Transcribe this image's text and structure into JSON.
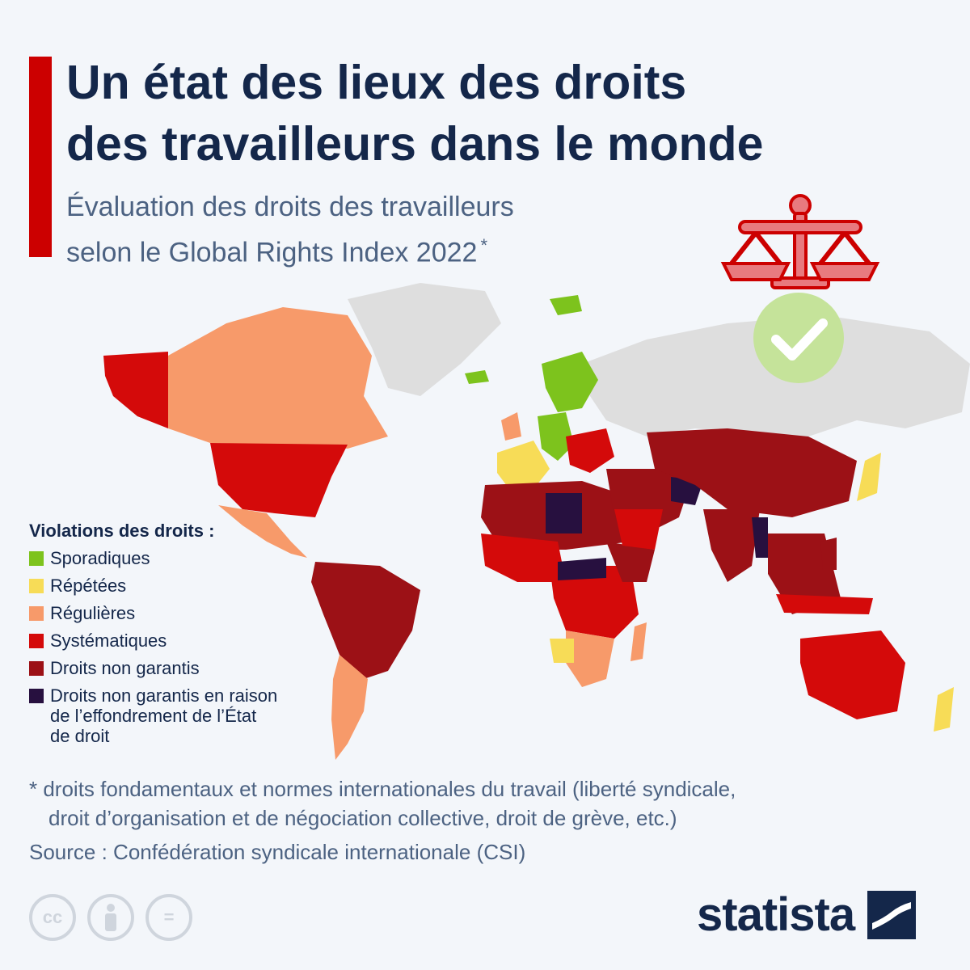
{
  "header": {
    "title_line1": "Un état des lieux des droits",
    "title_line2": "des travailleurs dans le monde",
    "subtitle_line1": "Évaluation des droits des travailleurs",
    "subtitle_line2": "selon le Global Rights Index 2022",
    "subtitle_mark": "*"
  },
  "colors": {
    "accent": "#cc0000",
    "sporadiques": "#7dc31d",
    "repetees": "#f7dc57",
    "regulieres": "#f79a6a",
    "systematiques": "#d40a0a",
    "non_garantis": "#9c1116",
    "effondrement": "#27103f",
    "no_data": "#dedede"
  },
  "legend": {
    "title": "Violations des droits :",
    "items": [
      {
        "label_lines": [
          "Sporadiques"
        ],
        "color": "#7dc31d"
      },
      {
        "label_lines": [
          "Répétées"
        ],
        "color": "#f7dc57"
      },
      {
        "label_lines": [
          "Régulières"
        ],
        "color": "#f79a6a"
      },
      {
        "label_lines": [
          "Systématiques"
        ],
        "color": "#d40a0a"
      },
      {
        "label_lines": [
          "Droits non garantis"
        ],
        "color": "#9c1116"
      },
      {
        "label_lines": [
          "Droits non garantis en raison",
          "de l’effondrement de l’État",
          "de droit"
        ],
        "color": "#27103f"
      }
    ]
  },
  "icons": {
    "scales": "scales-of-justice-icon",
    "check": "check-circle-icon",
    "license": [
      "cc-icon",
      "attribution-icon",
      "no-derivatives-icon"
    ]
  },
  "footer": {
    "footnote_line1": "* droits fondamentaux et normes internationales du travail (liberté syndicale,",
    "footnote_line2": "droit d’organisation et de négociation collective, droit de grève, etc.)",
    "source": "Source : Confédération syndicale internationale (CSI)",
    "license_cc": "cc",
    "license_eq": "=",
    "logo": "statista"
  }
}
